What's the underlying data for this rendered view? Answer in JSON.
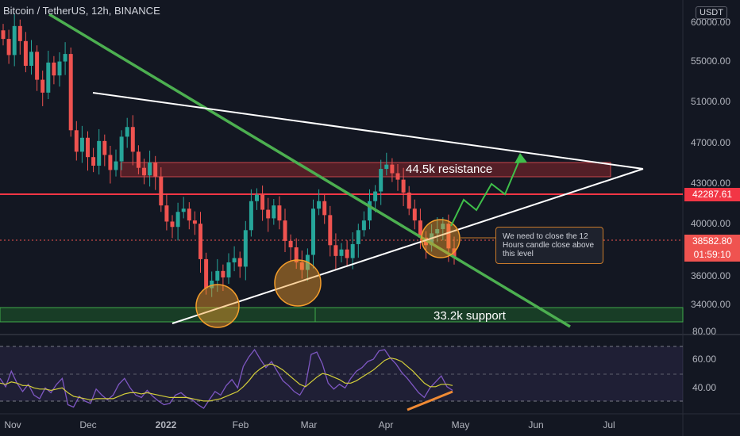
{
  "header": {
    "title": "Bitcoin / TetherUS, 12h, BINANCE",
    "currency": "USDT"
  },
  "price_tags": {
    "horizontal_level": "42287.61",
    "last_price": "38582.80",
    "countdown": "01:59:10"
  },
  "annotations": {
    "resistance_label": "44.5k resistance",
    "support_label": "33.2k support",
    "note": "We need to close the 12 Hours candle close above this level"
  },
  "colors": {
    "background": "#131722",
    "up_candle": "#26a69a",
    "down_candle": "#ef5350",
    "trendline_green": "#4caf50",
    "triangle_white": "#ffffff",
    "resistance_band": "#a12a2e",
    "support_band": "#1e5c2a",
    "horizontal_level": "#f23645",
    "rsi_line": "#7e57c2",
    "rsi_ma": "#d4cf3a",
    "circle_orange": "#f59e2b",
    "projection": "#3fbf4a"
  },
  "chart_data": {
    "type": "candlestick",
    "symbol": "Bitcoin / TetherUS",
    "interval": "12h",
    "exchange": "BINANCE",
    "price_axis_ticks": [
      34000,
      36000,
      40000,
      43000,
      47000,
      51000,
      55000,
      60000
    ],
    "x_tick_labels": [
      "Nov",
      "Dec",
      "2022",
      "Feb",
      "Mar",
      "Apr",
      "May",
      "Jun",
      "Jul"
    ],
    "rsi_axis_ticks": [
      40,
      60,
      80
    ],
    "price_range": [
      32000,
      61000
    ],
    "rsi_range": [
      25,
      82
    ],
    "levels": {
      "horizontal_level": 42287.61,
      "last_price": 38582.8,
      "resistance": 44500,
      "support": 33200
    },
    "series": [
      {
        "points": [
          [
            "Nov",
            59000
          ],
          [
            "Nov",
            57500
          ],
          [
            "Nov",
            60200
          ],
          [
            "Nov",
            58800
          ],
          [
            "Nov",
            56500
          ],
          [
            "Nov",
            57800
          ],
          [
            "Nov",
            55200
          ],
          [
            "Nov",
            54000
          ],
          [
            "Nov",
            56800
          ],
          [
            "Nov",
            55600
          ],
          [
            "Dec",
            56900
          ],
          [
            "Dec",
            57600
          ],
          [
            "Dec",
            50500
          ],
          [
            "Dec",
            48500
          ],
          [
            "Dec",
            49800
          ],
          [
            "Dec",
            48000
          ],
          [
            "Dec",
            47200
          ],
          [
            "Dec",
            49500
          ],
          [
            "Dec",
            48200
          ],
          [
            "Dec",
            46800
          ],
          [
            "Dec",
            47600
          ],
          [
            "Dec",
            49900
          ],
          [
            "Dec",
            50800
          ],
          [
            "Dec",
            48500
          ],
          [
            "Dec",
            47000
          ],
          [
            "Dec",
            46300
          ],
          [
            "Dec",
            47500
          ],
          [
            "2022",
            46200
          ],
          [
            "2022",
            43500
          ],
          [
            "2022",
            42000
          ],
          [
            "2022",
            41500
          ],
          [
            "2022",
            42900
          ],
          [
            "2022",
            43200
          ],
          [
            "2022",
            42100
          ],
          [
            "2022",
            41800
          ],
          [
            "2022",
            38500
          ],
          [
            "2022",
            35800
          ],
          [
            "2022",
            36500
          ],
          [
            "2022",
            37400
          ],
          [
            "2022",
            36800
          ],
          [
            "2022",
            38200
          ],
          [
            "Feb",
            38600
          ],
          [
            "Feb",
            37800
          ],
          [
            "Feb",
            41200
          ],
          [
            "Feb",
            43900
          ],
          [
            "Feb",
            44500
          ],
          [
            "Feb",
            43100
          ],
          [
            "Feb",
            42300
          ],
          [
            "Feb",
            43500
          ],
          [
            "Feb",
            42100
          ],
          [
            "Feb",
            40200
          ],
          [
            "Feb",
            39600
          ],
          [
            "Feb",
            38200
          ],
          [
            "Feb",
            37500
          ],
          [
            "Feb",
            38900
          ],
          [
            "Mar",
            43200
          ],
          [
            "Mar",
            43900
          ],
          [
            "Mar",
            42600
          ],
          [
            "Mar",
            39800
          ],
          [
            "Mar",
            38800
          ],
          [
            "Mar",
            39400
          ],
          [
            "Mar",
            38600
          ],
          [
            "Mar",
            39900
          ],
          [
            "Mar",
            41200
          ],
          [
            "Mar",
            42100
          ],
          [
            "Mar",
            43900
          ],
          [
            "Mar",
            44800
          ],
          [
            "Mar",
            46900
          ],
          [
            "Mar",
            47300
          ],
          [
            "Apr",
            46500
          ],
          [
            "Apr",
            45900
          ],
          [
            "Apr",
            44700
          ],
          [
            "Apr",
            43200
          ],
          [
            "Apr",
            42100
          ],
          [
            "Apr",
            40500
          ],
          [
            "Apr",
            39800
          ],
          [
            "Apr",
            40900
          ],
          [
            "Apr",
            41300
          ],
          [
            "Apr",
            41800
          ],
          [
            "Apr",
            39500
          ],
          [
            "Apr",
            38600
          ]
        ],
        "rsi": [
          52,
          45,
          58,
          48,
          41,
          47,
          38,
          35,
          44,
          40,
          47,
          52,
          30,
          28,
          37,
          33,
          31,
          43,
          38,
          34,
          38,
          47,
          52,
          44,
          38,
          36,
          42,
          37,
          33,
          30,
          31,
          38,
          40,
          36,
          34,
          30,
          27,
          34,
          41,
          38,
          46,
          51,
          44,
          62,
          70,
          76,
          68,
          61,
          66,
          58,
          50,
          46,
          41,
          38,
          46,
          72,
          74,
          64,
          48,
          43,
          47,
          44,
          52,
          58,
          61,
          66,
          68,
          75,
          76,
          69,
          64,
          57,
          52,
          46,
          40,
          36,
          44,
          49,
          54,
          45,
          42
        ],
        "rsi_ma": [
          48,
          47,
          49,
          48,
          46,
          46,
          44,
          43,
          43,
          42,
          43,
          44,
          40,
          37,
          36,
          35,
          34,
          35,
          35,
          35,
          35,
          37,
          39,
          40,
          40,
          39,
          40,
          39,
          38,
          37,
          36,
          36,
          36,
          36,
          35,
          34,
          33,
          33,
          34,
          35,
          37,
          39,
          41,
          45,
          50,
          56,
          60,
          63,
          64,
          62,
          59,
          55,
          51,
          47,
          45,
          49,
          53,
          56,
          55,
          53,
          51,
          48,
          48,
          50,
          53,
          56,
          59,
          63,
          67,
          69,
          68,
          66,
          62,
          58,
          53,
          48,
          45,
          45,
          47,
          47,
          46
        ]
      }
    ]
  }
}
